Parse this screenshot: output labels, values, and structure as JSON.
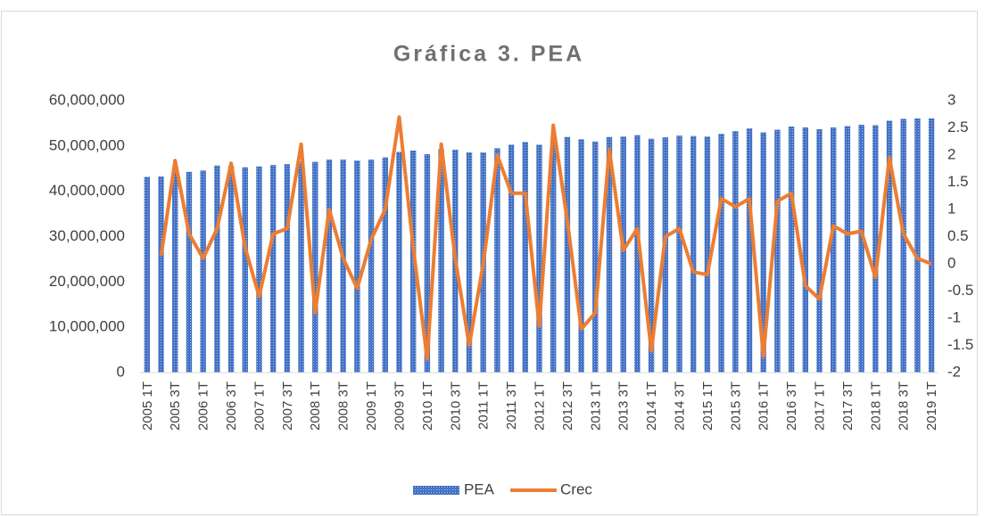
{
  "chart_data": {
    "type": "bar_line",
    "title": "Gráfica 3. PEA",
    "categories": [
      "2005 1T",
      null,
      "2005 3T",
      null,
      "2006 1T",
      null,
      "2006 3T",
      null,
      "2007 1T",
      null,
      "2007 3T",
      null,
      "2008 1T",
      null,
      "2008 3T",
      null,
      "2009 1T",
      null,
      "2009 3T",
      null,
      "2010 1T",
      null,
      "2010 3T",
      null,
      "2011 1T",
      null,
      "2011 3T",
      null,
      "2012 1T",
      null,
      "2012 3T",
      null,
      "2013 1T",
      null,
      "2013 3T",
      null,
      "2014 1T",
      null,
      "2014 3T",
      null,
      "2015 1T",
      null,
      "2015 3T",
      null,
      "2016 1T",
      null,
      "2016 3T",
      null,
      "2017 1T",
      null,
      "2017 3T",
      null,
      "2018 1T",
      null,
      "2018 3T",
      null,
      "2019 1T"
    ],
    "series": [
      {
        "name": "PEA",
        "color": "#4472c4",
        "values": [
          43200000,
          43300000,
          44200000,
          44300000,
          44600000,
          45700000,
          45600000,
          45300000,
          45500000,
          45800000,
          46000000,
          46500000,
          46500000,
          47000000,
          47000000,
          46800000,
          47000000,
          47500000,
          48700000,
          49000000,
          48200000,
          49300000,
          49200000,
          48600000,
          48600000,
          49500000,
          50300000,
          50900000,
          50300000,
          51500000,
          52000000,
          51500000,
          51000000,
          52000000,
          52100000,
          52400000,
          51600000,
          51900000,
          52300000,
          52200000,
          52100000,
          52700000,
          53300000,
          53900000,
          53000000,
          53600000,
          54300000,
          54100000,
          53700000,
          54100000,
          54400000,
          54700000,
          54600000,
          55600000,
          56000000,
          56100000,
          56100000
        ]
      },
      {
        "name": "Crec",
        "color": "#ed7d31",
        "axis": "y2",
        "values": [
          null,
          0.15,
          1.9,
          0.55,
          0.1,
          0.65,
          1.85,
          0.3,
          -0.6,
          0.55,
          0.65,
          2.2,
          -0.9,
          1.0,
          0.1,
          -0.45,
          0.45,
          1.0,
          2.7,
          0.3,
          -1.75,
          2.2,
          0.1,
          -1.5,
          0.0,
          2.0,
          1.3,
          1.3,
          -1.15,
          2.55,
          0.8,
          -1.2,
          -0.9,
          2.1,
          0.25,
          0.65,
          -1.6,
          0.5,
          0.65,
          -0.15,
          -0.2,
          1.2,
          1.05,
          1.2,
          -1.7,
          1.15,
          1.3,
          -0.4,
          -0.65,
          0.7,
          0.55,
          0.6,
          -0.25,
          1.95,
          0.55,
          0.1,
          0.0
        ]
      }
    ],
    "ylim": [
      0,
      60000000
    ],
    "yticks": [
      0,
      {
        "value": 10000000,
        "label": "10,000,000"
      },
      {
        "value": 20000000,
        "label": "20,000,000"
      },
      {
        "value": 30000000,
        "label": "30,000,000"
      },
      {
        "value": 40000000,
        "label": "40,000,000"
      },
      {
        "value": 50000000,
        "label": "50,000,000"
      },
      {
        "value": 60000000,
        "label": "60,000,000"
      }
    ],
    "y2lim": [
      -2,
      3
    ],
    "y2ticks": [
      -2,
      -1.5,
      -1,
      -0.5,
      0,
      0.5,
      1,
      1.5,
      2,
      2.5,
      3
    ],
    "grid": false,
    "legend": "bottom"
  }
}
